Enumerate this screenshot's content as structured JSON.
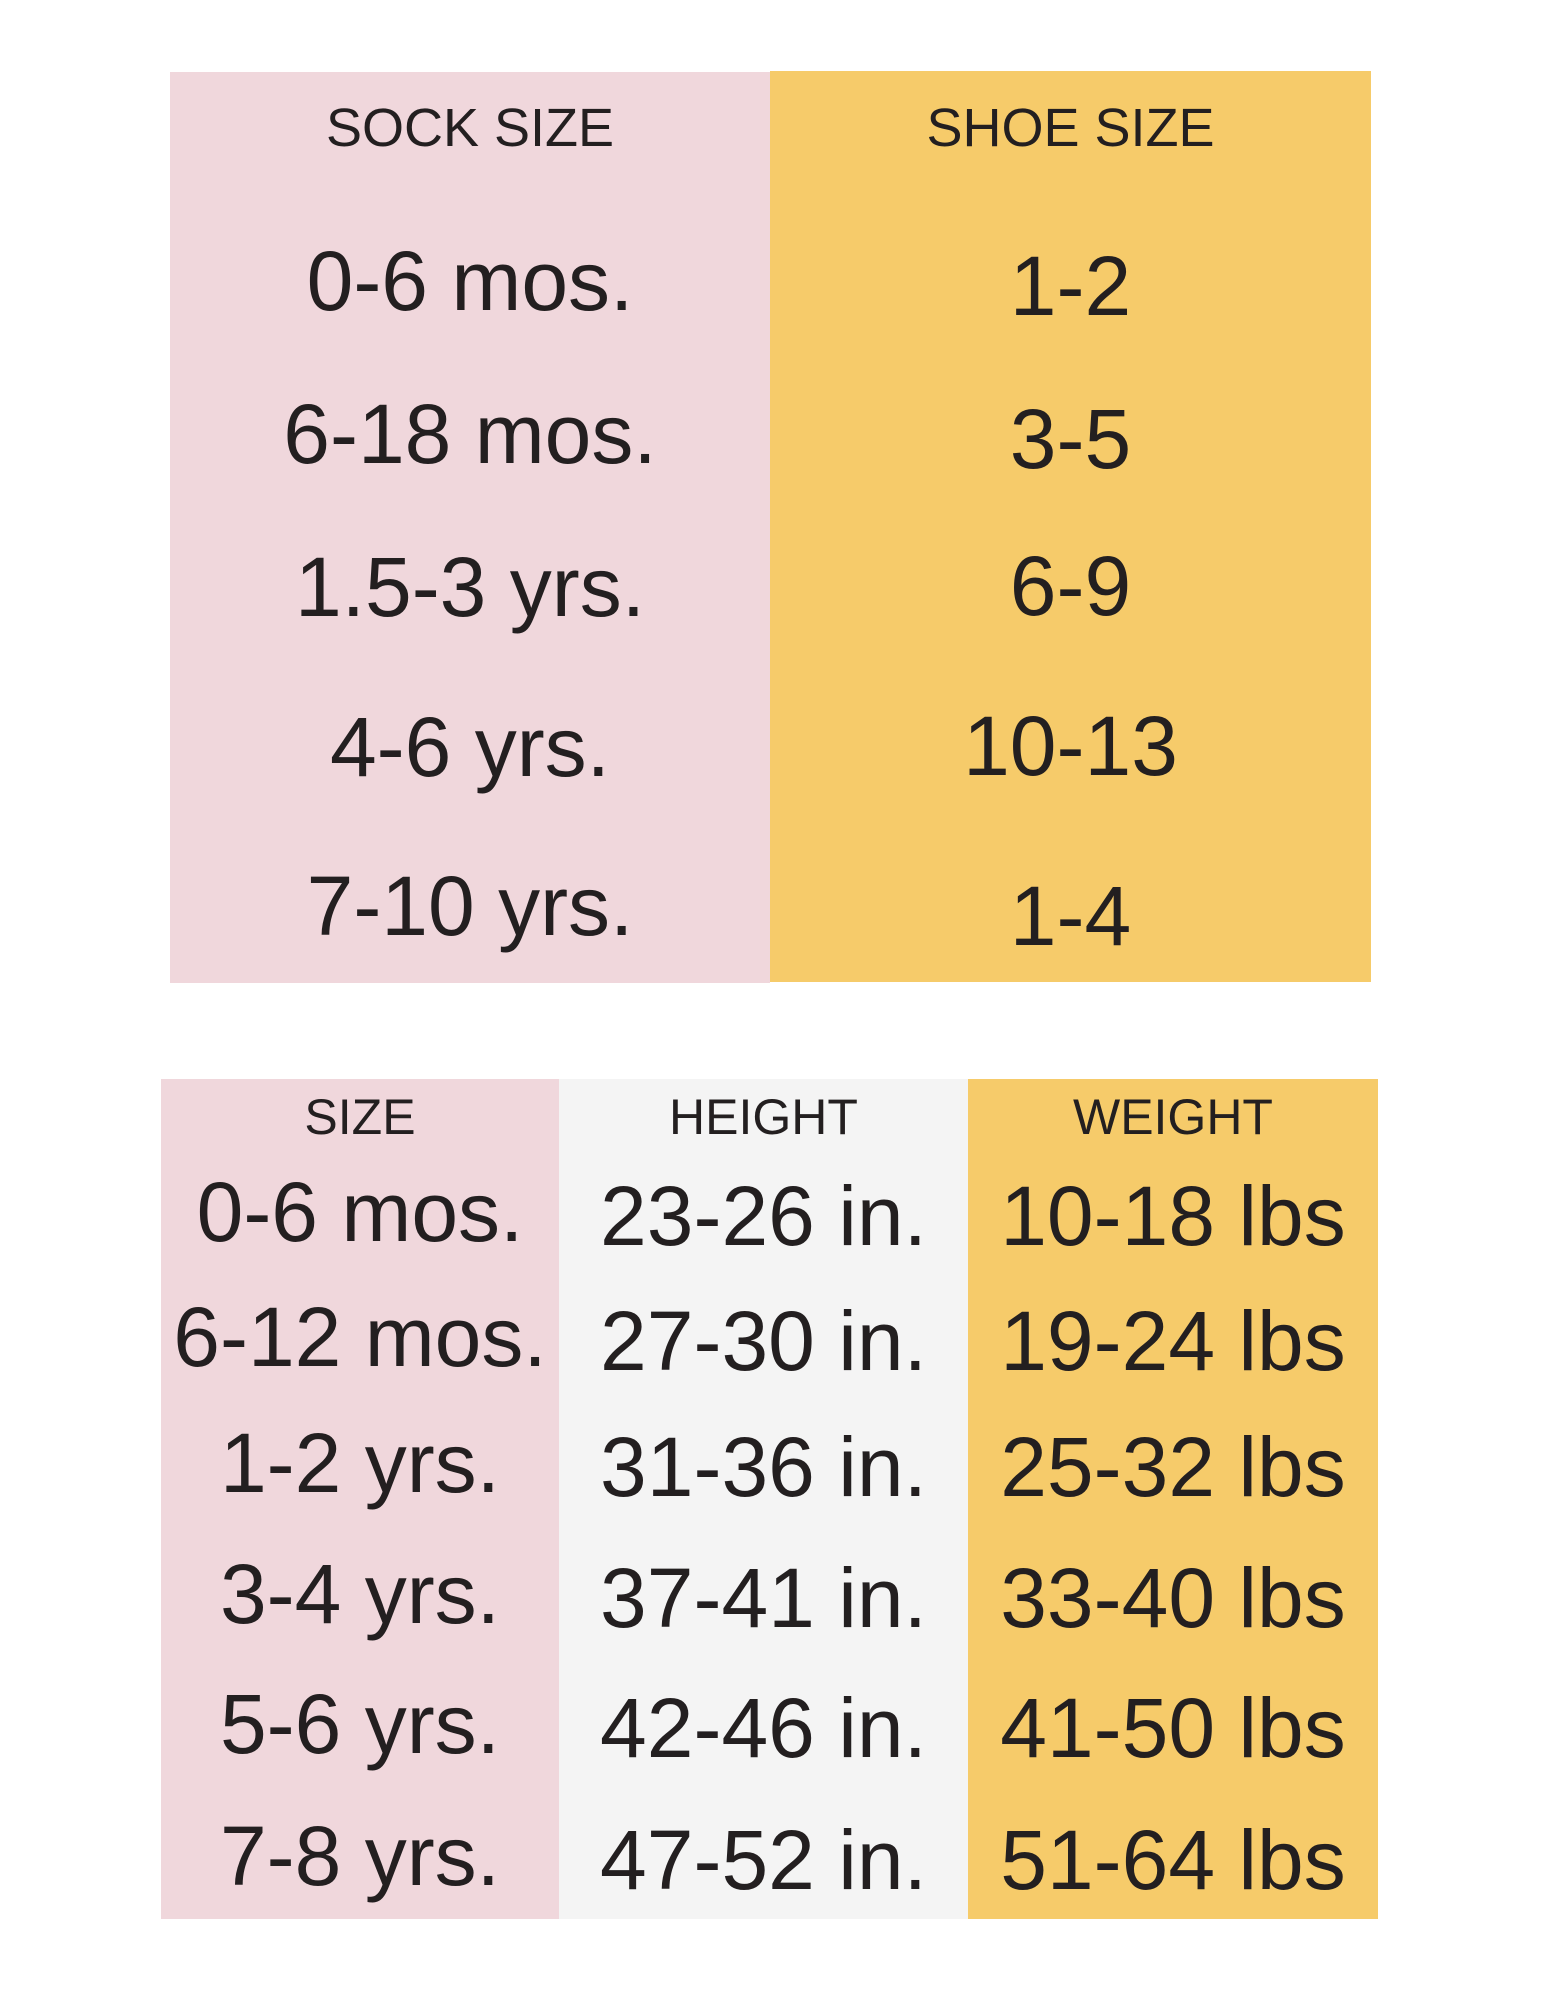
{
  "colors": {
    "pink": "#f0d7dc",
    "yellow": "#f6cb6a",
    "gray": "#f4f4f4",
    "text": "#231f20"
  },
  "sock_table": {
    "headers": [
      "SOCK SIZE",
      "SHOE SIZE"
    ],
    "sock_sizes": [
      "0-6 mos.",
      "6-18 mos.",
      "1.5-3 yrs.",
      "4-6 yrs.",
      "7-10 yrs."
    ],
    "shoe_sizes": [
      "1-2",
      "3-5",
      "6-9",
      "10-13",
      "1-4"
    ]
  },
  "size_table": {
    "headers": [
      "SIZE",
      "HEIGHT",
      "WEIGHT"
    ],
    "sizes": [
      "0-6 mos.",
      "6-12 mos.",
      "1-2 yrs.",
      "3-4 yrs.",
      "5-6 yrs.",
      "7-8 yrs."
    ],
    "heights": [
      "23-26 in.",
      "27-30 in.",
      "31-36 in.",
      "37-41 in.",
      "42-46 in.",
      "47-52 in."
    ],
    "weights": [
      "10-18 lbs",
      "19-24 lbs",
      "25-32 lbs",
      "33-40 lbs",
      "41-50 lbs",
      "51-64 lbs"
    ]
  }
}
